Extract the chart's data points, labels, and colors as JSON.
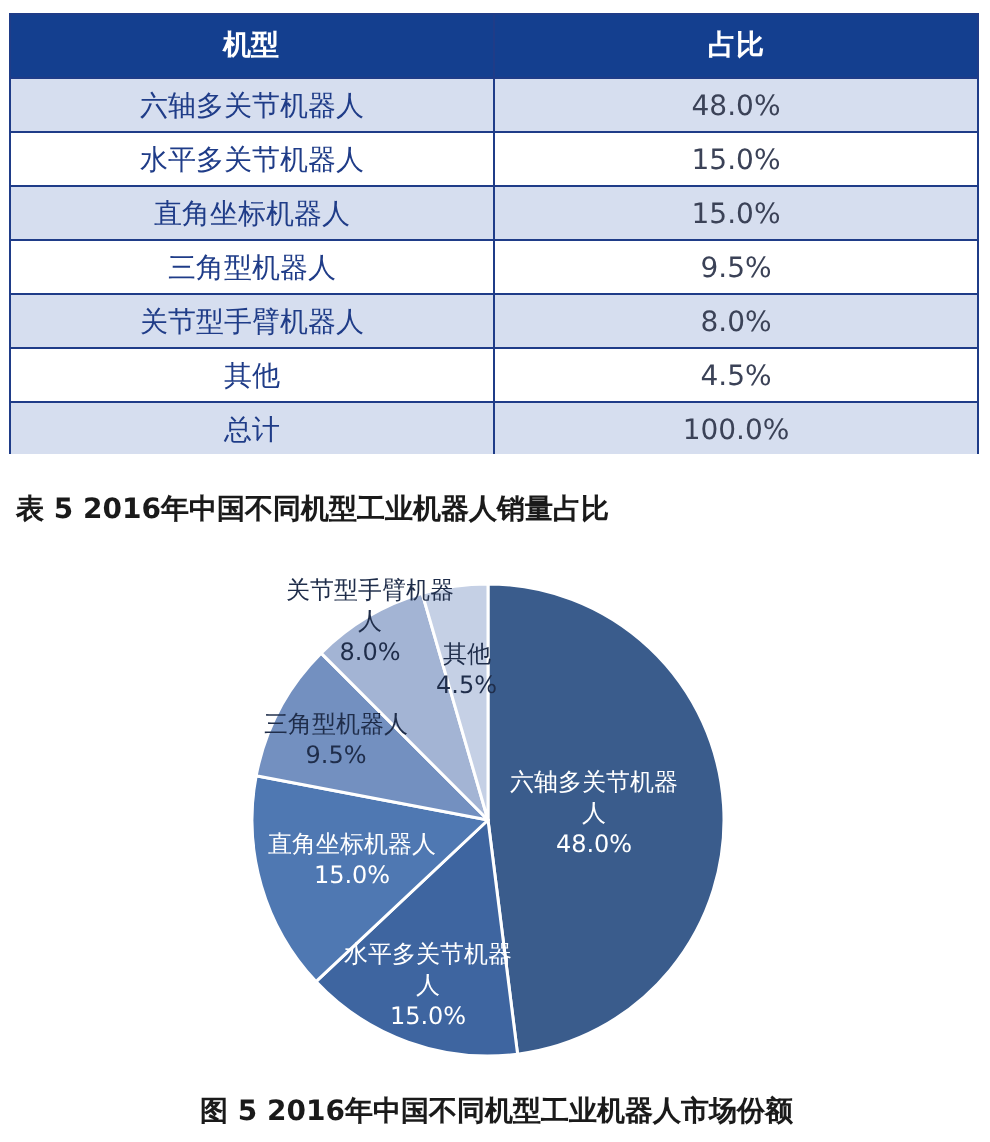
{
  "chart_data": [
    {
      "type": "other",
      "title": "表 5 2016年中国不同机型工业机器人销量占比",
      "xlabel": "机型",
      "ylabel": "占比",
      "categories": [
        "六轴多关节机器人",
        "水平多关节机器人",
        "直角坐标机器人",
        "三角型机器人",
        "关节型手臂机器人",
        "其他",
        "总计"
      ],
      "values": [
        48.0,
        15.0,
        15.0,
        9.5,
        8.0,
        4.5,
        100.0
      ],
      "value_labels": [
        "48.0%",
        "15.0%",
        "15.0%",
        "9.5%",
        "8.0%",
        "4.5%",
        "100.0%"
      ]
    },
    {
      "type": "pie",
      "title": "图 5 2016年中国不同机型工业机器人市场份额",
      "categories": [
        "六轴多关节机器人",
        "水平多关节机器人",
        "直角坐标机器人",
        "三角型机器人",
        "关节型手臂机器人",
        "其他"
      ],
      "values": [
        48.0,
        15.0,
        15.0,
        9.5,
        8.0,
        4.5
      ],
      "value_labels": [
        "48.0%",
        "15.0%",
        "15.0%",
        "9.5%",
        "8.0%",
        "4.5%"
      ],
      "colors": [
        "#3a5c8c",
        "#3e65a0",
        "#4f78b2",
        "#7390c0",
        "#a3b4d4",
        "#c5d0e5"
      ]
    }
  ]
}
